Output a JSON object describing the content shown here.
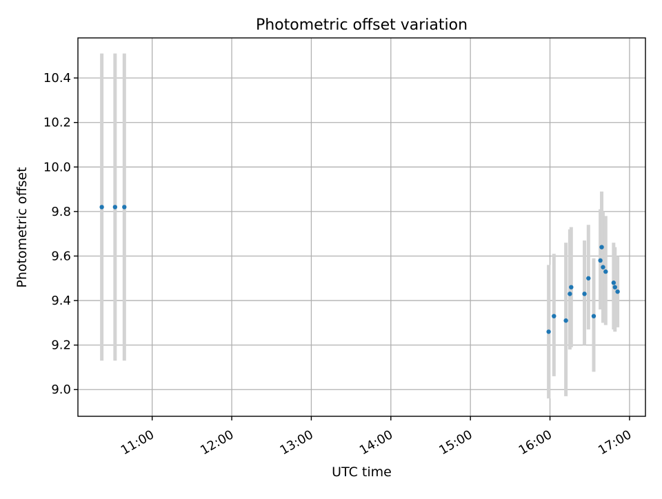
{
  "chart_data": {
    "type": "scatter",
    "title": "Photometric offset variation",
    "xlabel": "UTC time",
    "ylabel": "Photometric offset",
    "x_ticks": [
      "11:00",
      "12:00",
      "13:00",
      "14:00",
      "15:00",
      "16:00",
      "17:00"
    ],
    "y_ticks": [
      "9.0",
      "9.2",
      "9.4",
      "9.6",
      "9.8",
      "10.0",
      "10.2",
      "10.4"
    ],
    "xlim": [
      "10:04",
      "17:12"
    ],
    "ylim": [
      8.88,
      10.58
    ],
    "grid": true,
    "marker_color": "#1f77b4",
    "errorbar_color": "#d3d3d3",
    "points": [
      {
        "x": "10:22",
        "y": 9.82,
        "lo": 9.13,
        "hi": 10.51
      },
      {
        "x": "10:32",
        "y": 9.82,
        "lo": 9.13,
        "hi": 10.51
      },
      {
        "x": "10:39",
        "y": 9.82,
        "lo": 9.13,
        "hi": 10.51
      },
      {
        "x": "15:59",
        "y": 9.26,
        "lo": 8.96,
        "hi": 9.56
      },
      {
        "x": "16:03",
        "y": 9.33,
        "lo": 9.06,
        "hi": 9.61
      },
      {
        "x": "16:12",
        "y": 9.31,
        "lo": 8.97,
        "hi": 9.66
      },
      {
        "x": "16:15",
        "y": 9.43,
        "lo": 9.18,
        "hi": 9.72
      },
      {
        "x": "16:16",
        "y": 9.46,
        "lo": 9.19,
        "hi": 9.73
      },
      {
        "x": "16:26",
        "y": 9.43,
        "lo": 9.2,
        "hi": 9.67
      },
      {
        "x": "16:29",
        "y": 9.5,
        "lo": 9.27,
        "hi": 9.74
      },
      {
        "x": "16:33",
        "y": 9.33,
        "lo": 9.08,
        "hi": 9.59
      },
      {
        "x": "16:38",
        "y": 9.58,
        "lo": 9.36,
        "hi": 9.81
      },
      {
        "x": "16:39",
        "y": 9.64,
        "lo": 9.39,
        "hi": 9.89
      },
      {
        "x": "16:40",
        "y": 9.55,
        "lo": 9.3,
        "hi": 9.8
      },
      {
        "x": "16:42",
        "y": 9.53,
        "lo": 9.29,
        "hi": 9.78
      },
      {
        "x": "16:48",
        "y": 9.48,
        "lo": 9.27,
        "hi": 9.66
      },
      {
        "x": "16:49",
        "y": 9.46,
        "lo": 9.26,
        "hi": 9.64
      },
      {
        "x": "16:51",
        "y": 9.44,
        "lo": 9.28,
        "hi": 9.6
      }
    ]
  }
}
